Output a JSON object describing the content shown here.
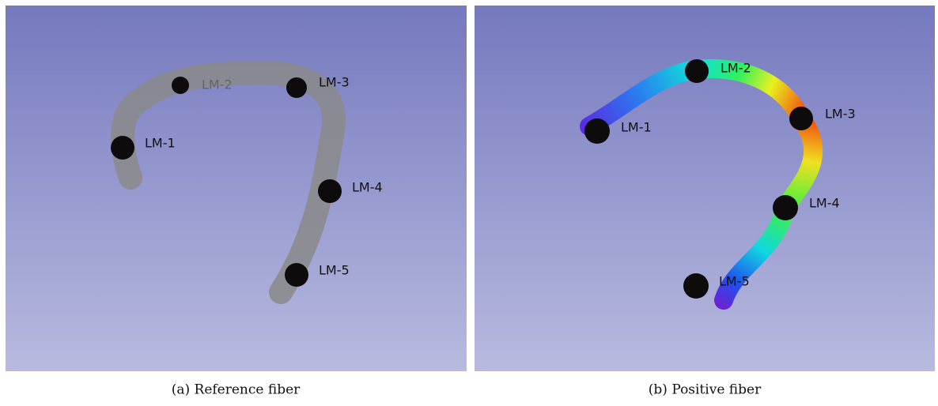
{
  "panels": [
    {
      "caption": "(a) Reference fiber",
      "landmarks": [
        "LM-1",
        "LM-2",
        "LM-3",
        "LM-4",
        "LM-5"
      ]
    },
    {
      "caption": "(b) Positive fiber",
      "landmarks": [
        "LM-1",
        "LM-2",
        "LM-3",
        "LM-4",
        "LM-5"
      ]
    }
  ]
}
